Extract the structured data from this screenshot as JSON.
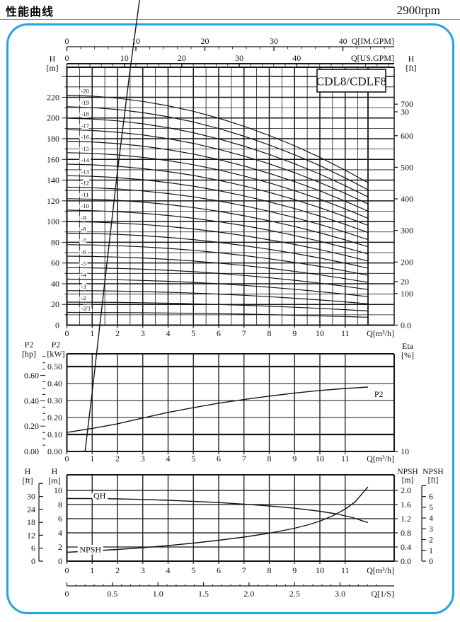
{
  "page": {
    "title": "性能曲线",
    "rpm": "2900rpm",
    "accent_color": "#2aa2df",
    "ink_color": "#151515"
  },
  "chart_data": [
    {
      "type": "line",
      "title": "CDL8/CDLF8",
      "x_bottom": {
        "unit": "Q[m³/h]",
        "ticks": [
          0,
          1,
          2,
          3,
          4,
          5,
          6,
          7,
          8,
          9,
          10,
          11
        ],
        "q_max": 11.9
      },
      "x_top_imperial": {
        "unit": "Q[IM.GPM]",
        "labeled_ticks": [
          0,
          10,
          20,
          30,
          40
        ],
        "minor_tick_step": 2,
        "gpm_per_m3h": 3.666
      },
      "x_top_us": {
        "unit": "Q[US.GPM]",
        "labeled_ticks": [
          0,
          10,
          20,
          30,
          40
        ],
        "minor_tick_step": 2,
        "gpm_per_m3h": 4.403
      },
      "y_left": {
        "unit": [
          "H",
          "[m]"
        ],
        "labeled_ticks": [
          0,
          20,
          40,
          60,
          80,
          100,
          120,
          140,
          160,
          180,
          200,
          220
        ],
        "minor_tick_step": 10,
        "y_max": 249
      },
      "y_right": {
        "unit": [
          "H",
          "[ft]"
        ],
        "labeled_ticks": [
          "0.0",
          "100",
          "200",
          "300",
          "400",
          "500",
          "600",
          "700"
        ],
        "ft_per_m": 3.2808
      },
      "curve_shape": {
        "q_samples": [
          0,
          1,
          2,
          3,
          4,
          5,
          6,
          7,
          8,
          9,
          10,
          11,
          11.9
        ],
        "head_factors": [
          1,
          0.996,
          0.987,
          0.973,
          0.954,
          0.93,
          0.9,
          0.865,
          0.825,
          0.78,
          0.73,
          0.674,
          0.62
        ]
      },
      "series": [
        {
          "label": "-2/1",
          "shutoff_head_m": 12.3
        },
        {
          "label": "-2",
          "shutoff_head_m": 22.2
        },
        {
          "label": "-3",
          "shutoff_head_m": 33.3
        },
        {
          "label": "-4",
          "shutoff_head_m": 44.4
        },
        {
          "label": "-5",
          "shutoff_head_m": 55.5
        },
        {
          "label": "-6",
          "shutoff_head_m": 66.6
        },
        {
          "label": "-7",
          "shutoff_head_m": 77.7
        },
        {
          "label": "-8",
          "shutoff_head_m": 88.8
        },
        {
          "label": "-9",
          "shutoff_head_m": 99.9
        },
        {
          "label": "-10",
          "shutoff_head_m": 111.0
        },
        {
          "label": "-11",
          "shutoff_head_m": 122.1
        },
        {
          "label": "-12",
          "shutoff_head_m": 133.2
        },
        {
          "label": "-13",
          "shutoff_head_m": 144.3
        },
        {
          "label": "-14",
          "shutoff_head_m": 155.4
        },
        {
          "label": "-15",
          "shutoff_head_m": 166.5
        },
        {
          "label": "-16",
          "shutoff_head_m": 177.6
        },
        {
          "label": "-17",
          "shutoff_head_m": 188.7
        },
        {
          "label": "-18",
          "shutoff_head_m": 199.8
        },
        {
          "label": "-19",
          "shutoff_head_m": 210.9
        },
        {
          "label": "-20",
          "shutoff_head_m": 222.0
        }
      ]
    },
    {
      "type": "line",
      "x_bottom": {
        "unit": "Q[m³/h]",
        "ticks": [
          0,
          1,
          2,
          3,
          4,
          5,
          6,
          7,
          8,
          9,
          10,
          11
        ]
      },
      "y_left_outer": {
        "unit": [
          "P2",
          "[hp]"
        ],
        "labeled_ticks": [
          "0.00",
          "0.20",
          "0.40",
          "0.60"
        ],
        "minor_tick_step_hp": 0.05,
        "kw_per_hp": 0.7457
      },
      "y_left_inner": {
        "unit": [
          "P2",
          "[kW]"
        ],
        "labeled_ticks": [
          "0.00",
          "0.10",
          "0.20",
          "0.30",
          "0.40",
          "0.50"
        ],
        "kw_max": 0.575
      },
      "y_right": {
        "unit": [
          "Eta",
          "[%]"
        ],
        "labeled_ticks": [
          10,
          20,
          30,
          40,
          50,
          60
        ]
      },
      "series": [
        {
          "name": "Eta",
          "scale": "eta_percent",
          "label_anchor": {
            "q": 12.1,
            "v": 61.7
          },
          "points": [
            [
              0.72,
              10
            ],
            [
              1,
              13.5
            ],
            [
              1.5,
              20
            ],
            [
              2,
              26.5
            ],
            [
              2.5,
              32.5
            ],
            [
              3,
              38
            ],
            [
              3.5,
              42.5
            ],
            [
              4,
              46.5
            ],
            [
              4.5,
              50
            ],
            [
              5,
              53.2
            ],
            [
              5.5,
              55.8
            ],
            [
              6,
              58
            ],
            [
              6.5,
              59.8
            ],
            [
              7,
              61.2
            ],
            [
              7.5,
              62.3
            ],
            [
              8,
              63.2
            ],
            [
              8.5,
              63.8
            ],
            [
              9,
              64.1
            ],
            [
              9.5,
              64.2
            ],
            [
              10,
              64.1
            ],
            [
              10.5,
              63.7
            ],
            [
              11,
              63
            ],
            [
              11.5,
              62.3
            ],
            [
              11.9,
              61.7
            ]
          ]
        },
        {
          "name": "P2",
          "scale": "kw",
          "label_anchor": {
            "q": 12.15,
            "v": 0.3375
          },
          "points": [
            [
              0,
              0.112
            ],
            [
              1,
              0.136
            ],
            [
              2,
              0.163
            ],
            [
              3,
              0.197
            ],
            [
              4,
              0.23
            ],
            [
              5,
              0.258
            ],
            [
              6,
              0.284
            ],
            [
              7,
              0.306
            ],
            [
              8,
              0.326
            ],
            [
              9,
              0.344
            ],
            [
              10,
              0.359
            ],
            [
              11,
              0.371
            ],
            [
              11.9,
              0.379
            ]
          ]
        }
      ]
    },
    {
      "type": "line",
      "x_bottom": {
        "unit": "Q[m³/h]",
        "ticks": [
          0,
          1,
          2,
          3,
          4,
          5,
          6,
          7,
          8,
          9,
          10,
          11
        ]
      },
      "x_bottom_outer": {
        "unit": "Q[1/S]",
        "labeled_ticks": [
          "0",
          "0.5",
          "1.0",
          "1.5",
          "2.0",
          "2.5",
          "3.0"
        ],
        "minor_tick_step_ls": 0.1,
        "m3h_per_ls": 3.6
      },
      "y_left_inner": {
        "unit": [
          "H",
          "[m]"
        ],
        "labeled_ticks": [
          0,
          2,
          4,
          6,
          8,
          10
        ],
        "y_max": 12.2
      },
      "y_left_outer": {
        "unit": [
          "H",
          "[ft]"
        ],
        "labeled_ticks": [
          0,
          6,
          12,
          18,
          24,
          30
        ]
      },
      "y_right_inner": {
        "unit": [
          "NPSH",
          "[m]"
        ],
        "labeled_ticks": [
          "0.0",
          "0.4",
          "0.8",
          "1.2",
          "1.6",
          "2.0"
        ]
      },
      "y_right_outer": {
        "unit": [
          "NPSH",
          "[ft]"
        ],
        "labeled_ticks": [
          0,
          1,
          2,
          3,
          4,
          5,
          6
        ]
      },
      "series": [
        {
          "name": "QH",
          "scale": "h_m",
          "label_anchor": {
            "q": 1.05,
            "v": 9.25
          },
          "points": [
            [
              0,
              8.85
            ],
            [
              1,
              8.84
            ],
            [
              2,
              8.8
            ],
            [
              3,
              8.72
            ],
            [
              4,
              8.6
            ],
            [
              5,
              8.45
            ],
            [
              6,
              8.28
            ],
            [
              7,
              8.06
            ],
            [
              8,
              7.8
            ],
            [
              9,
              7.48
            ],
            [
              10,
              7.05
            ],
            [
              10.7,
              6.65
            ],
            [
              11.3,
              6.15
            ],
            [
              11.9,
              5.45
            ]
          ]
        },
        {
          "name": "NPSH",
          "scale": "npsh_m",
          "label_anchor": {
            "q": 0.5,
            "v": 0.33
          },
          "points": [
            [
              0,
              0.25
            ],
            [
              1,
              0.29
            ],
            [
              2,
              0.33
            ],
            [
              3,
              0.38
            ],
            [
              4,
              0.44
            ],
            [
              5,
              0.51
            ],
            [
              6,
              0.59
            ],
            [
              7,
              0.68
            ],
            [
              8,
              0.79
            ],
            [
              9,
              0.93
            ],
            [
              9.5,
              1.02
            ],
            [
              10,
              1.13
            ],
            [
              10.5,
              1.28
            ],
            [
              11,
              1.47
            ],
            [
              11.4,
              1.68
            ],
            [
              11.9,
              2.1
            ]
          ]
        }
      ]
    }
  ]
}
